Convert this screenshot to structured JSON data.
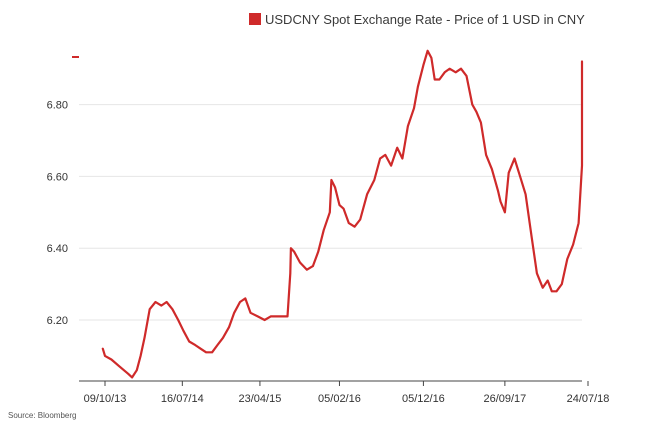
{
  "chart_data": {
    "type": "line",
    "legend": "USDCNY Spot Exchange Rate - Price of 1 USD in CNY",
    "legend_position": "top-right",
    "source": "Source: Bloomberg",
    "y_ticks": [
      "6.20",
      "6.40",
      "6.60",
      "6.80"
    ],
    "y_tick_values": [
      6.2,
      6.4,
      6.6,
      6.8
    ],
    "ylim": [
      6.03,
      6.98
    ],
    "x_ticks": [
      "09/10/13",
      "16/07/14",
      "23/04/15",
      "05/02/16",
      "05/12/16",
      "26/09/17",
      "24/07/18"
    ],
    "grid": "horizontal",
    "series_color": "#cf2a2a",
    "series": [
      {
        "x": [
          "2013-10-01",
          "2013-10-09",
          "2013-11-01",
          "2013-12-01",
          "2014-01-01",
          "2014-01-15",
          "2014-02-01",
          "2014-02-15",
          "2014-03-01",
          "2014-03-20",
          "2014-04-10",
          "2014-05-01",
          "2014-05-20",
          "2014-06-10",
          "2014-07-01",
          "2014-07-20",
          "2014-08-10",
          "2014-09-01",
          "2014-09-20",
          "2014-10-10",
          "2014-11-01",
          "2014-11-20",
          "2014-12-10",
          "2015-01-01",
          "2015-01-20",
          "2015-02-10",
          "2015-03-01",
          "2015-03-20",
          "2015-04-15",
          "2015-05-10",
          "2015-06-01",
          "2015-07-01",
          "2015-08-01",
          "2015-08-11",
          "2015-08-13",
          "2015-08-25",
          "2015-09-15",
          "2015-10-10",
          "2015-11-01",
          "2015-11-20",
          "2015-12-10",
          "2016-01-01",
          "2016-01-07",
          "2016-01-20",
          "2016-02-05",
          "2016-02-20",
          "2016-03-10",
          "2016-03-31",
          "2016-04-20",
          "2016-05-15",
          "2016-06-10",
          "2016-07-01",
          "2016-07-20",
          "2016-08-10",
          "2016-09-01",
          "2016-09-20",
          "2016-10-10",
          "2016-11-01",
          "2016-11-15",
          "2016-12-05",
          "2016-12-20",
          "2017-01-03",
          "2017-01-15",
          "2017-02-01",
          "2017-02-20",
          "2017-03-10",
          "2017-04-01",
          "2017-04-20",
          "2017-05-10",
          "2017-05-31",
          "2017-06-15",
          "2017-07-01",
          "2017-07-20",
          "2017-08-10",
          "2017-09-01",
          "2017-09-10",
          "2017-09-26",
          "2017-10-10",
          "2017-10-31",
          "2017-11-20",
          "2017-12-10",
          "2018-01-01",
          "2018-01-20",
          "2018-02-10",
          "2018-02-28",
          "2018-03-15",
          "2018-04-01",
          "2018-04-20",
          "2018-05-10",
          "2018-05-31",
          "2018-06-20",
          "2018-07-05",
          "2018-07-20",
          "2018-08-01",
          "2018-08-10",
          "2018-08-20"
        ],
        "values": [
          6.12,
          6.1,
          6.09,
          6.07,
          6.05,
          6.04,
          6.06,
          6.1,
          6.15,
          6.23,
          6.25,
          6.24,
          6.25,
          6.23,
          6.2,
          6.17,
          6.14,
          6.13,
          6.12,
          6.11,
          6.11,
          6.13,
          6.15,
          6.18,
          6.22,
          6.25,
          6.26,
          6.22,
          6.21,
          6.2,
          6.21,
          6.21,
          6.21,
          6.33,
          6.4,
          6.39,
          6.36,
          6.34,
          6.35,
          6.39,
          6.45,
          6.5,
          6.59,
          6.57,
          6.52,
          6.51,
          6.47,
          6.46,
          6.48,
          6.55,
          6.59,
          6.65,
          6.66,
          6.63,
          6.68,
          6.65,
          6.74,
          6.79,
          6.85,
          6.91,
          6.95,
          6.93,
          6.87,
          6.87,
          6.89,
          6.9,
          6.89,
          6.9,
          6.88,
          6.8,
          6.78,
          6.75,
          6.66,
          6.62,
          6.56,
          6.53,
          6.5,
          6.61,
          6.65,
          6.6,
          6.55,
          6.43,
          6.33,
          6.29,
          6.31,
          6.28,
          6.28,
          6.3,
          6.37,
          6.41,
          6.47,
          6.63,
          6.81,
          6.85,
          6.91,
          6.92
        ]
      }
    ]
  }
}
